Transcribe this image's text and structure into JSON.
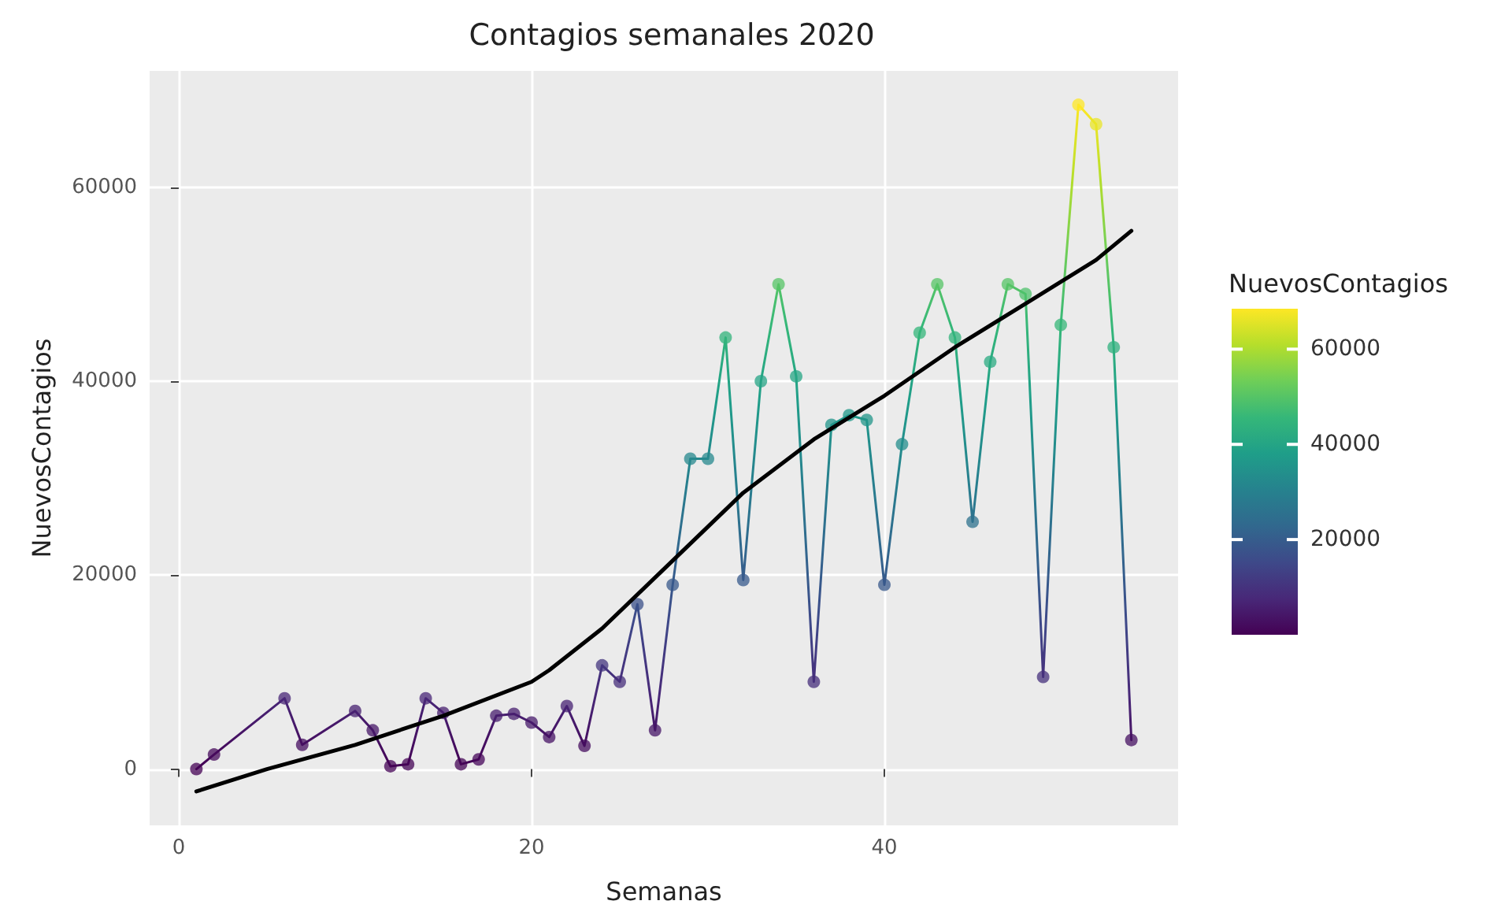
{
  "chart_data": {
    "type": "line",
    "title": "Contagios semanales 2020",
    "xlabel": "Semanas",
    "ylabel": "NuevosContagios",
    "clabel": "NuevosContagios",
    "x": [
      1,
      2,
      6,
      7,
      10,
      11,
      12,
      13,
      14,
      15,
      16,
      17,
      18,
      19,
      20,
      21,
      22,
      23,
      24,
      25,
      26,
      27,
      28,
      29,
      30,
      31,
      32,
      33,
      34,
      35,
      36,
      37,
      38,
      39,
      40,
      41,
      42,
      43,
      44,
      45,
      46,
      47,
      48,
      49,
      50,
      51,
      52,
      53,
      54
    ],
    "series": [
      {
        "values": [
          0,
          1500,
          7300,
          2500,
          6000,
          4000,
          300,
          500,
          7300,
          5800,
          500,
          1000,
          5500,
          5700,
          4800,
          3300,
          6500,
          2400,
          10700,
          9000,
          17000,
          4000,
          19000,
          32000,
          32000,
          44500,
          19500,
          40000,
          50000,
          40500,
          9000,
          35500,
          36500,
          36000,
          19000,
          33500,
          45000,
          50000,
          44500,
          25500,
          42000,
          50000,
          49000,
          9500,
          45800,
          68500,
          66500,
          43500,
          3000
        ],
        "marker": "circle"
      },
      {
        "type": "line",
        "x": [
          1,
          5,
          10,
          15,
          20,
          21,
          24,
          28,
          32,
          36,
          40,
          44,
          48,
          52,
          54
        ],
        "values": [
          -2300,
          0,
          2500,
          5500,
          9000,
          10200,
          14500,
          21500,
          28500,
          34000,
          38500,
          43500,
          48000,
          52500,
          55500
        ],
        "color": "#000000",
        "marker": "none"
      }
    ],
    "xlim": [
      -1.65,
      56.65
    ],
    "xticks": [
      0,
      20,
      40
    ],
    "ylim": [
      -5800,
      72000
    ],
    "yticks": [
      0,
      20000,
      40000,
      60000
    ],
    "clim": [
      0,
      68500
    ],
    "cticks": [
      20000,
      40000,
      60000
    ],
    "grid": true
  }
}
